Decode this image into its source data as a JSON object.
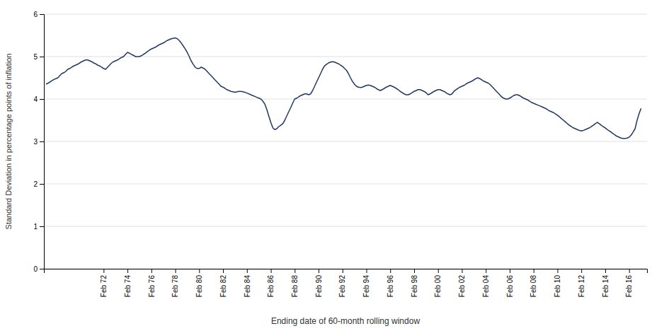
{
  "chart_data": {
    "type": "line",
    "xlabel": "Ending date of 60-month rolling window",
    "ylabel": "Standard Deviation in percentage points of inflation",
    "color": "#1f3864",
    "grid": true,
    "xlim": [
      1967.0,
      2017.5
    ],
    "xticks": [
      {
        "value": 1972,
        "label": "Feb 72"
      },
      {
        "value": 1974,
        "label": "Feb 74"
      },
      {
        "value": 1976,
        "label": "Feb 76"
      },
      {
        "value": 1978,
        "label": "Feb 78"
      },
      {
        "value": 1980,
        "label": "Feb 80"
      },
      {
        "value": 1982,
        "label": "Feb 82"
      },
      {
        "value": 1984,
        "label": "Feb 84"
      },
      {
        "value": 1986,
        "label": "Feb 86"
      },
      {
        "value": 1988,
        "label": "Feb 88"
      },
      {
        "value": 1990,
        "label": "Feb 90"
      },
      {
        "value": 1992,
        "label": "Feb 92"
      },
      {
        "value": 1994,
        "label": "Feb 94"
      },
      {
        "value": 1996,
        "label": "Feb 96"
      },
      {
        "value": 1998,
        "label": "Feb 98"
      },
      {
        "value": 2000,
        "label": "Feb 00"
      },
      {
        "value": 2002,
        "label": "Feb 02"
      },
      {
        "value": 2004,
        "label": "Feb 04"
      },
      {
        "value": 2006,
        "label": "Feb 06"
      },
      {
        "value": 2008,
        "label": "Feb 08"
      },
      {
        "value": 2010,
        "label": "Feb 10"
      },
      {
        "value": 2012,
        "label": "Feb 12"
      },
      {
        "value": 2014,
        "label": "Feb 14"
      },
      {
        "value": 2016,
        "label": "Feb 16"
      }
    ],
    "ylim": [
      0,
      6
    ],
    "yticks": [
      0,
      1,
      2,
      3,
      4,
      5,
      6
    ],
    "x": [
      1967.17,
      1967.33,
      1967.5,
      1967.67,
      1967.83,
      1968.0,
      1968.17,
      1968.33,
      1968.5,
      1968.67,
      1968.83,
      1969.0,
      1969.17,
      1969.33,
      1969.5,
      1969.67,
      1969.83,
      1970.0,
      1970.17,
      1970.33,
      1970.5,
      1970.67,
      1970.83,
      1971.0,
      1971.17,
      1971.33,
      1971.5,
      1971.67,
      1971.83,
      1972.0,
      1972.17,
      1972.33,
      1972.5,
      1972.67,
      1972.83,
      1973.0,
      1973.17,
      1973.33,
      1973.5,
      1973.67,
      1973.83,
      1974.0,
      1974.17,
      1974.33,
      1974.5,
      1974.67,
      1974.83,
      1975.0,
      1975.17,
      1975.33,
      1975.5,
      1975.67,
      1975.83,
      1976.0,
      1976.17,
      1976.33,
      1976.5,
      1976.67,
      1976.83,
      1977.0,
      1977.17,
      1977.33,
      1977.5,
      1977.67,
      1977.83,
      1978.0,
      1978.17,
      1978.33,
      1978.5,
      1978.67,
      1978.83,
      1979.0,
      1979.17,
      1979.33,
      1979.5,
      1979.67,
      1979.83,
      1980.0,
      1980.17,
      1980.33,
      1980.5,
      1980.67,
      1980.83,
      1981.0,
      1981.17,
      1981.33,
      1981.5,
      1981.67,
      1981.83,
      1982.0,
      1982.17,
      1982.33,
      1982.5,
      1982.67,
      1982.83,
      1983.0,
      1983.17,
      1983.33,
      1983.5,
      1983.67,
      1983.83,
      1984.0,
      1984.17,
      1984.33,
      1984.5,
      1984.67,
      1984.83,
      1985.0,
      1985.17,
      1985.33,
      1985.5,
      1985.67,
      1985.83,
      1986.0,
      1986.17,
      1986.33,
      1986.5,
      1986.67,
      1986.83,
      1987.0,
      1987.17,
      1987.33,
      1987.5,
      1987.67,
      1987.83,
      1988.0,
      1988.17,
      1988.33,
      1988.5,
      1988.67,
      1988.83,
      1989.0,
      1989.17,
      1989.33,
      1989.5,
      1989.67,
      1989.83,
      1990.0,
      1990.17,
      1990.33,
      1990.5,
      1990.67,
      1990.83,
      1991.0,
      1991.17,
      1991.33,
      1991.5,
      1991.67,
      1991.83,
      1992.0,
      1992.17,
      1992.33,
      1992.5,
      1992.67,
      1992.83,
      1993.0,
      1993.17,
      1993.33,
      1993.5,
      1993.67,
      1993.83,
      1994.0,
      1994.17,
      1994.33,
      1994.5,
      1994.67,
      1994.83,
      1995.0,
      1995.17,
      1995.33,
      1995.5,
      1995.67,
      1995.83,
      1996.0,
      1996.17,
      1996.33,
      1996.5,
      1996.67,
      1996.83,
      1997.0,
      1997.17,
      1997.33,
      1997.5,
      1997.67,
      1997.83,
      1998.0,
      1998.17,
      1998.33,
      1998.5,
      1998.67,
      1998.83,
      1999.0,
      1999.17,
      1999.33,
      1999.5,
      1999.67,
      1999.83,
      2000.0,
      2000.17,
      2000.33,
      2000.5,
      2000.67,
      2000.83,
      2001.0,
      2001.17,
      2001.33,
      2001.5,
      2001.67,
      2001.83,
      2002.0,
      2002.17,
      2002.33,
      2002.5,
      2002.67,
      2002.83,
      2003.0,
      2003.17,
      2003.33,
      2003.5,
      2003.67,
      2003.83,
      2004.0,
      2004.17,
      2004.33,
      2004.5,
      2004.67,
      2004.83,
      2005.0,
      2005.17,
      2005.33,
      2005.5,
      2005.67,
      2005.83,
      2006.0,
      2006.17,
      2006.33,
      2006.5,
      2006.67,
      2006.83,
      2007.0,
      2007.17,
      2007.33,
      2007.5,
      2007.67,
      2007.83,
      2008.0,
      2008.17,
      2008.33,
      2008.5,
      2008.67,
      2008.83,
      2009.0,
      2009.17,
      2009.33,
      2009.5,
      2009.67,
      2009.83,
      2010.0,
      2010.17,
      2010.33,
      2010.5,
      2010.67,
      2010.83,
      2011.0,
      2011.17,
      2011.33,
      2011.5,
      2011.67,
      2011.83,
      2012.0,
      2012.17,
      2012.33,
      2012.5,
      2012.67,
      2012.83,
      2013.0,
      2013.17,
      2013.33,
      2013.5,
      2013.67,
      2013.83,
      2014.0,
      2014.17,
      2014.33,
      2014.5,
      2014.67,
      2014.83,
      2015.0,
      2015.17,
      2015.33,
      2015.5,
      2015.67,
      2015.83,
      2016.0,
      2016.17,
      2016.33,
      2016.5,
      2016.67,
      2016.83,
      2017.0
    ],
    "values": [
      4.35,
      4.37,
      4.4,
      4.43,
      4.46,
      4.48,
      4.5,
      4.55,
      4.6,
      4.62,
      4.65,
      4.7,
      4.72,
      4.75,
      4.78,
      4.8,
      4.82,
      4.85,
      4.88,
      4.9,
      4.92,
      4.92,
      4.9,
      4.88,
      4.85,
      4.83,
      4.8,
      4.78,
      4.75,
      4.72,
      4.7,
      4.75,
      4.8,
      4.85,
      4.88,
      4.9,
      4.92,
      4.95,
      4.98,
      5.0,
      5.05,
      5.1,
      5.08,
      5.05,
      5.03,
      5.0,
      5.0,
      5.0,
      5.02,
      5.05,
      5.08,
      5.12,
      5.15,
      5.18,
      5.2,
      5.22,
      5.25,
      5.28,
      5.3,
      5.32,
      5.35,
      5.38,
      5.4,
      5.42,
      5.43,
      5.44,
      5.42,
      5.38,
      5.32,
      5.25,
      5.18,
      5.1,
      5.0,
      4.9,
      4.82,
      4.75,
      4.72,
      4.72,
      4.75,
      4.73,
      4.7,
      4.65,
      4.6,
      4.55,
      4.5,
      4.45,
      4.4,
      4.35,
      4.3,
      4.28,
      4.25,
      4.22,
      4.2,
      4.18,
      4.17,
      4.16,
      4.17,
      4.18,
      4.18,
      4.17,
      4.16,
      4.14,
      4.12,
      4.1,
      4.08,
      4.06,
      4.04,
      4.02,
      4.0,
      3.95,
      3.88,
      3.75,
      3.6,
      3.45,
      3.32,
      3.28,
      3.3,
      3.35,
      3.38,
      3.42,
      3.5,
      3.6,
      3.7,
      3.8,
      3.9,
      4.0,
      4.02,
      4.05,
      4.08,
      4.1,
      4.12,
      4.12,
      4.1,
      4.12,
      4.2,
      4.3,
      4.4,
      4.5,
      4.6,
      4.7,
      4.78,
      4.82,
      4.85,
      4.87,
      4.88,
      4.87,
      4.85,
      4.83,
      4.8,
      4.77,
      4.72,
      4.68,
      4.6,
      4.5,
      4.42,
      4.35,
      4.3,
      4.28,
      4.27,
      4.28,
      4.3,
      4.32,
      4.33,
      4.32,
      4.3,
      4.28,
      4.25,
      4.22,
      4.2,
      4.22,
      4.25,
      4.28,
      4.3,
      4.32,
      4.3,
      4.28,
      4.25,
      4.22,
      4.18,
      4.15,
      4.12,
      4.1,
      4.1,
      4.12,
      4.15,
      4.18,
      4.2,
      4.22,
      4.22,
      4.2,
      4.18,
      4.15,
      4.1,
      4.12,
      4.15,
      4.18,
      4.2,
      4.22,
      4.22,
      4.2,
      4.18,
      4.15,
      4.12,
      4.1,
      4.12,
      4.18,
      4.22,
      4.25,
      4.28,
      4.3,
      4.32,
      4.35,
      4.38,
      4.4,
      4.42,
      4.45,
      4.48,
      4.5,
      4.48,
      4.45,
      4.42,
      4.4,
      4.38,
      4.35,
      4.3,
      4.25,
      4.2,
      4.15,
      4.1,
      4.05,
      4.02,
      4.0,
      4.0,
      4.02,
      4.05,
      4.08,
      4.1,
      4.1,
      4.08,
      4.05,
      4.02,
      4.0,
      3.98,
      3.95,
      3.92,
      3.9,
      3.88,
      3.86,
      3.84,
      3.82,
      3.8,
      3.78,
      3.75,
      3.72,
      3.7,
      3.68,
      3.65,
      3.62,
      3.58,
      3.54,
      3.5,
      3.46,
      3.42,
      3.38,
      3.35,
      3.32,
      3.3,
      3.28,
      3.26,
      3.25,
      3.26,
      3.28,
      3.3,
      3.32,
      3.35,
      3.38,
      3.42,
      3.45,
      3.42,
      3.38,
      3.35,
      3.32,
      3.28,
      3.25,
      3.22,
      3.18,
      3.15,
      3.12,
      3.1,
      3.08,
      3.07,
      3.07,
      3.08,
      3.1,
      3.15,
      3.22,
      3.3,
      3.5,
      3.65,
      3.78
    ]
  }
}
